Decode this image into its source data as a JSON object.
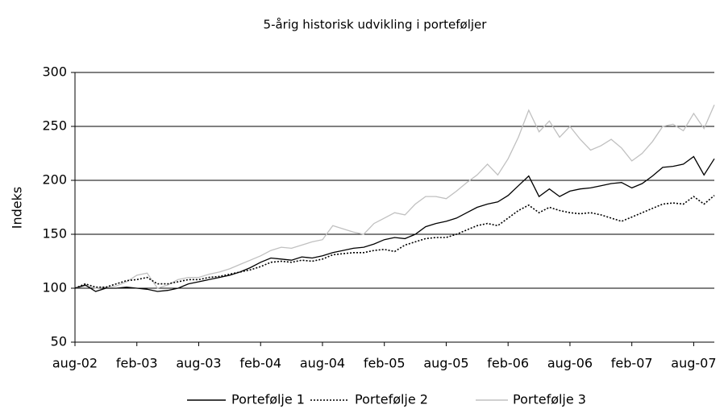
{
  "chart_data": {
    "type": "line",
    "title": "5-årig historisk udvikling i porteføljer",
    "y_label": "Indeks",
    "categories": [
      "aug-02",
      null,
      null,
      null,
      null,
      null,
      "feb-03",
      null,
      null,
      null,
      null,
      null,
      "aug-03",
      null,
      null,
      null,
      null,
      null,
      "feb-04",
      null,
      null,
      null,
      null,
      null,
      "aug-04",
      null,
      null,
      null,
      null,
      null,
      "feb-05",
      null,
      null,
      null,
      null,
      null,
      "aug-05",
      null,
      null,
      null,
      null,
      null,
      "feb-06",
      null,
      null,
      null,
      null,
      null,
      "aug-06",
      null,
      null,
      null,
      null,
      null,
      "feb-07",
      null,
      null,
      null,
      null,
      null,
      "aug-07",
      null,
      null
    ],
    "series": [
      {
        "name": "Portefølje 1",
        "color": "#000000",
        "dash": "solid",
        "values": [
          100,
          103,
          97,
          100,
          100,
          101,
          100,
          99,
          97,
          98,
          100,
          104,
          106,
          108,
          110,
          112,
          115,
          119,
          124,
          128,
          127,
          126,
          129,
          128,
          130,
          133,
          135,
          137,
          138,
          141,
          145,
          147,
          146,
          150,
          157,
          160,
          162,
          165,
          170,
          175,
          178,
          180,
          186,
          195,
          204,
          185,
          192,
          185,
          190,
          192,
          193,
          195,
          197,
          198,
          193,
          197,
          204,
          212,
          213,
          215,
          222,
          205,
          220
        ]
      },
      {
        "name": "Portefølje 2",
        "color": "#000000",
        "dash": "dotted",
        "values": [
          100,
          104,
          101,
          101,
          104,
          107,
          108,
          110,
          104,
          104,
          106,
          108,
          108,
          110,
          111,
          113,
          115,
          117,
          120,
          124,
          125,
          124,
          126,
          125,
          127,
          131,
          132,
          133,
          133,
          135,
          136,
          134,
          140,
          143,
          146,
          147,
          147,
          150,
          154,
          158,
          160,
          158,
          165,
          172,
          177,
          170,
          175,
          172,
          170,
          169,
          170,
          168,
          165,
          162,
          166,
          170,
          174,
          178,
          179,
          178,
          185,
          178,
          186
        ]
      },
      {
        "name": "Portefølje 3",
        "color": "#c0c0c0",
        "dash": "solid",
        "values": [
          100,
          102,
          100,
          101,
          102,
          106,
          112,
          114,
          100,
          103,
          108,
          110,
          110,
          113,
          115,
          118,
          122,
          126,
          130,
          135,
          138,
          137,
          140,
          143,
          145,
          158,
          155,
          152,
          150,
          160,
          165,
          170,
          168,
          178,
          185,
          185,
          183,
          190,
          198,
          205,
          215,
          205,
          220,
          240,
          265,
          245,
          255,
          240,
          250,
          238,
          228,
          232,
          238,
          230,
          218,
          225,
          236,
          250,
          252,
          246,
          262,
          248,
          270
        ]
      }
    ],
    "ylim": [
      50,
      300
    ],
    "yticks": [
      50,
      100,
      150,
      200,
      250,
      300
    ],
    "grid": true,
    "legend": "bottom"
  }
}
